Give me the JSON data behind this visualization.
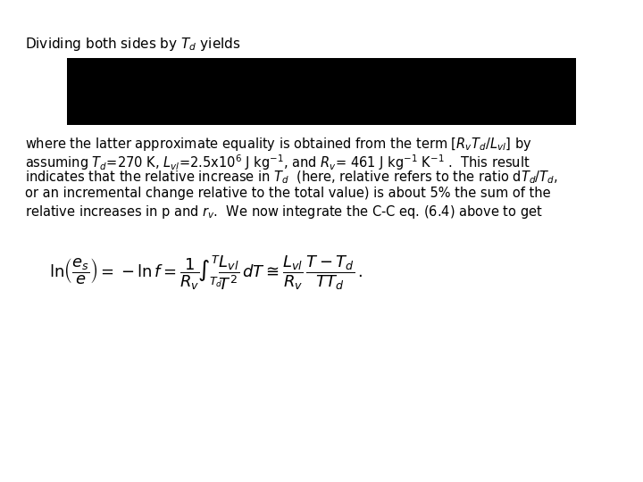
{
  "background_color": "#ffffff",
  "title_text": "Dividing both sides by $T_d$ yields",
  "title_fontsize": 11,
  "black_box_color": "#000000",
  "paragraph_lines": [
    "where the latter approximate equality is obtained from the term [$R_vT_d$/$L_{vl}$] by",
    "assuming $T_d$=270 K, $L_{vl}$=2.5x10$^6$ J kg$^{-1}$, and $R_v$= 461 J kg$^{-1}$ K$^{-1}$ .  This result",
    "indicates that the relative increase in $T_d$  (here, relative refers to the ratio d$T_d$/$T_d$,",
    "or an incremental change relative to the total value) is about 5% the sum of the",
    "relative increases in p and $r_v$.  We now integrate the C-C eq. (6.4) above to get"
  ],
  "para_fontsize": 10.5,
  "equation": "$\\ln\\!\\left(\\dfrac{e_s}{e}\\right) = -\\ln f = \\dfrac{1}{R_v}\\!\\int_{T_d}^{T}\\!\\dfrac{L_{vl}}{T^2}\\,dT \\cong \\dfrac{L_{vl}}{R_v}\\,\\dfrac{T-T_d}{TT_d}\\,.$",
  "eq_fontsize": 13
}
